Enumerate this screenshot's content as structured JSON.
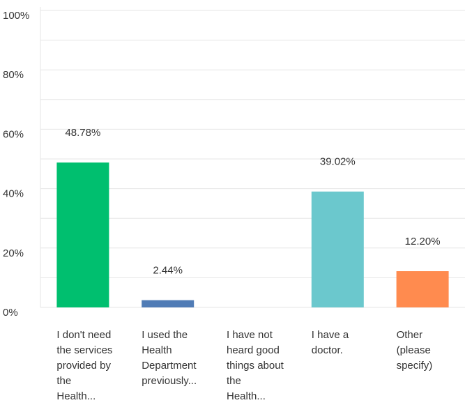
{
  "chart_data": {
    "type": "bar",
    "categories": [
      "I don't need the services provided by the Health...",
      "I used the Health Department previously...",
      "I have not heard good things about the Health...",
      "I have a doctor.",
      "Other (please specify)"
    ],
    "values": [
      48.78,
      2.44,
      null,
      39.02,
      12.2
    ],
    "value_labels": [
      "48.78%",
      "2.44%",
      null,
      "39.02%",
      "12.20%"
    ],
    "colors": [
      "#00bf6f",
      "#507cb6",
      "#00bf6f",
      "#6bc8cd",
      "#ff8b4f"
    ],
    "ylim": [
      0,
      100
    ],
    "yticks": [
      {
        "value": 0,
        "label": "0%"
      },
      {
        "value": 20,
        "label": "20%"
      },
      {
        "value": 40,
        "label": "40%"
      },
      {
        "value": 60,
        "label": "60%"
      },
      {
        "value": 80,
        "label": "80%"
      },
      {
        "value": 100,
        "label": "100%"
      }
    ],
    "grid": true
  }
}
